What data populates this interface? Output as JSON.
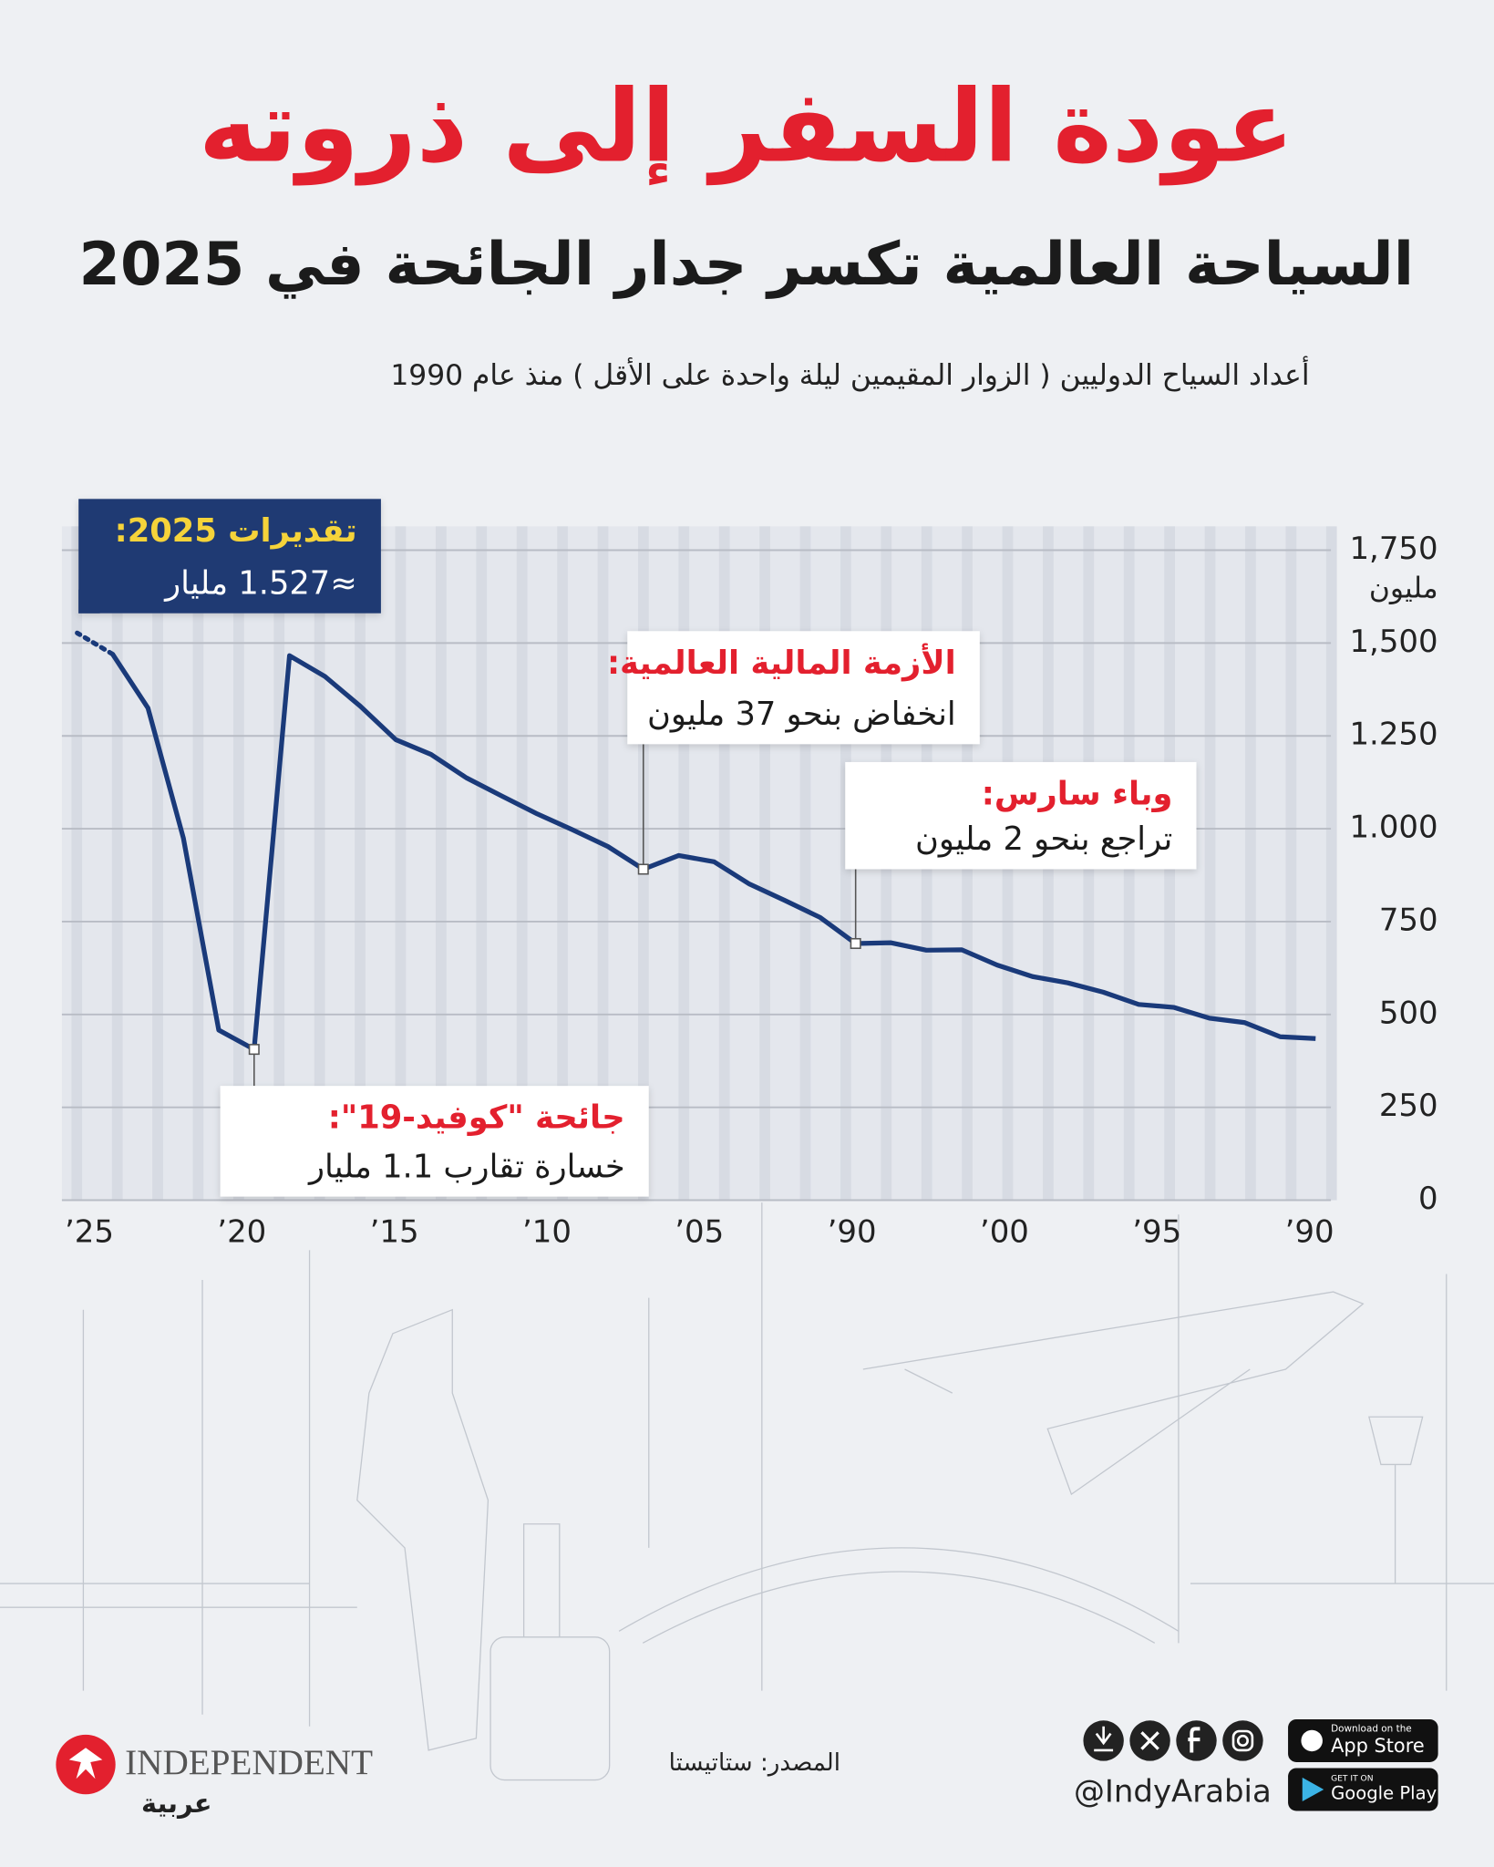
{
  "header": {
    "title": "عودة السفر إلى ذروته",
    "subtitle": "السياحة العالمية تكسر جدار الجائحة في 2025",
    "description": "أعداد السياح الدوليين ( الزوار المقيمين ليلة واحدة على الأقل ) منذ عام 1990"
  },
  "chart_data": {
    "type": "line",
    "x": [
      1990,
      1991,
      1992,
      1993,
      1994,
      1995,
      1996,
      1997,
      1998,
      1999,
      2000,
      2001,
      2002,
      2003,
      2004,
      2005,
      2006,
      2007,
      2008,
      2009,
      2010,
      2011,
      2012,
      2013,
      2014,
      2015,
      2016,
      2017,
      2018,
      2019,
      2020,
      2021,
      2022,
      2023,
      2024
    ],
    "series": [
      {
        "color": "#1a3a7a",
        "values": [
          435,
          440,
          478,
          490,
          519,
          527,
          560,
          585,
          602,
          633,
          674,
          673,
          693,
          691,
          761,
          807,
          851,
          911,
          928,
          891,
          952,
          997,
          1040,
          1088,
          1137,
          1200,
          1240,
          1330,
          1410,
          1466,
          406,
          458,
          975,
          1325,
          1470
        ]
      }
    ],
    "estimate": {
      "x": 2025,
      "value": 1527
    },
    "xlim": [
      2025.5,
      1989.5
    ],
    "x_labels": [
      "’25",
      "’20",
      "’15",
      "’10",
      "’05",
      "’90",
      "’00",
      "’95",
      "’90"
    ],
    "ylim": [
      0,
      1750
    ],
    "yticks": [
      0,
      250,
      500,
      750,
      {
        "value": 1000,
        "label": "1.000"
      },
      {
        "value": 1250,
        "label": "1.250"
      },
      {
        "value": 1500,
        "label": "1,500"
      },
      {
        "value": 1750,
        "label": "1,750"
      }
    ],
    "y_unit": "مليون",
    "grid": true,
    "annotations": [
      {
        "x": 2025,
        "title": "تقديرات 2025:",
        "text": "≈1.527 مليار"
      },
      {
        "x": 2009,
        "title": "الأزمة المالية العالمية:",
        "text": "انخفاض بنحو 37 مليون"
      },
      {
        "x": 2003,
        "title": "وباء سارس:",
        "text": "تراجع بنحو 2 مليون"
      },
      {
        "x": 2020,
        "title": "جائحة \"كوفيد-19\":",
        "text": "خسارة تقارب 1.1 مليار"
      }
    ]
  },
  "footer": {
    "source": "المصدر: ستاتيستا",
    "brand": "INDEPENDENT",
    "brand_sub": "عربية",
    "handle": "@IndyArabia",
    "app_store_top": "Download on the",
    "app_store": "App Store",
    "google_top": "GET IT ON",
    "google": "Google Play"
  }
}
